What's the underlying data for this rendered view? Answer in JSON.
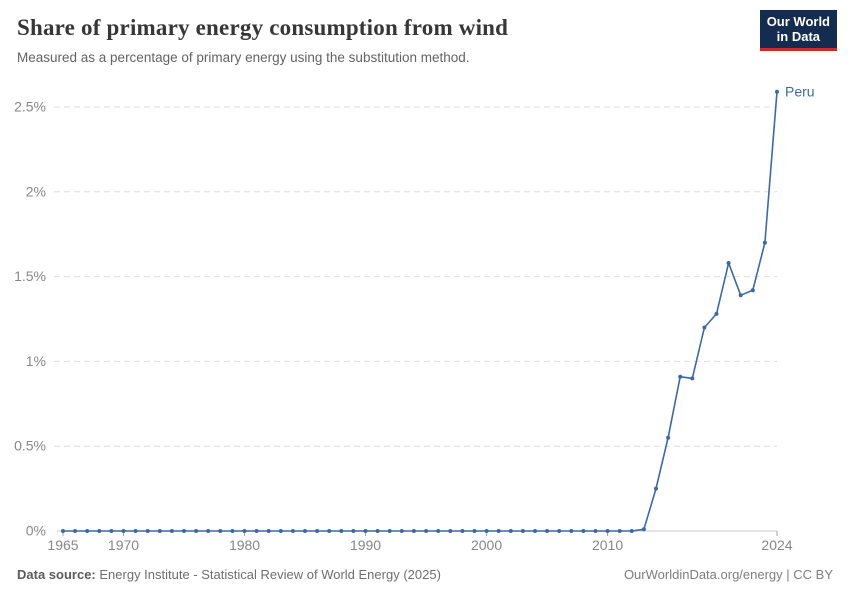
{
  "header": {
    "logo_line1": "Our World",
    "logo_line2": "in Data"
  },
  "chart_data": {
    "type": "line",
    "title": "Share of primary energy consumption from wind",
    "subtitle": "Measured as a percentage of primary energy using the substitution method.",
    "xlabel": "",
    "ylabel": "",
    "xlim": [
      1965,
      2024
    ],
    "ylim": [
      0,
      2.65
    ],
    "grid": "horizontal-dashed",
    "legend_position": "end-of-line",
    "x": [
      1965,
      1966,
      1967,
      1968,
      1969,
      1970,
      1971,
      1972,
      1973,
      1974,
      1975,
      1976,
      1977,
      1978,
      1979,
      1980,
      1981,
      1982,
      1983,
      1984,
      1985,
      1986,
      1987,
      1988,
      1989,
      1990,
      1991,
      1992,
      1993,
      1994,
      1995,
      1996,
      1997,
      1998,
      1999,
      2000,
      2001,
      2002,
      2003,
      2004,
      2005,
      2006,
      2007,
      2008,
      2009,
      2010,
      2011,
      2012,
      2013,
      2014,
      2015,
      2016,
      2017,
      2018,
      2019,
      2020,
      2021,
      2022,
      2023,
      2024
    ],
    "series": [
      {
        "name": "Peru",
        "color": "#3d68a7",
        "values": [
          0,
          0,
          0,
          0,
          0,
          0,
          0,
          0,
          0,
          0,
          0,
          0,
          0,
          0,
          0,
          0,
          0,
          0,
          0,
          0,
          0,
          0,
          0,
          0,
          0,
          0,
          0,
          0,
          0,
          0,
          0,
          0,
          0,
          0,
          0,
          0,
          0,
          0,
          0,
          0,
          0,
          0,
          0,
          0,
          0,
          0,
          0,
          0,
          0.01,
          0.25,
          0.55,
          0.91,
          0.9,
          1.2,
          1.28,
          1.58,
          1.39,
          1.42,
          1.7,
          2.59
        ]
      }
    ],
    "x_ticks": [
      1965,
      1970,
      1980,
      1990,
      2000,
      2010,
      2024
    ],
    "y_ticks": [
      {
        "value": 0,
        "label": "0%"
      },
      {
        "value": 0.5,
        "label": "0.5%"
      },
      {
        "value": 1,
        "label": "1%"
      },
      {
        "value": 1.5,
        "label": "1.5%"
      },
      {
        "value": 2,
        "label": "2%"
      },
      {
        "value": 2.5,
        "label": "2.5%"
      }
    ],
    "colors": {
      "line": "#3d68a7",
      "grid": "#dddddd",
      "axis": "#c8c8c8",
      "tick": "#a3a3a3",
      "label": "#878787"
    }
  },
  "footer": {
    "source_label": "Data source:",
    "source_text": "Energy Institute - Statistical Review of World Energy (2025)",
    "license_text": "OurWorldinData.org/energy | CC BY"
  }
}
